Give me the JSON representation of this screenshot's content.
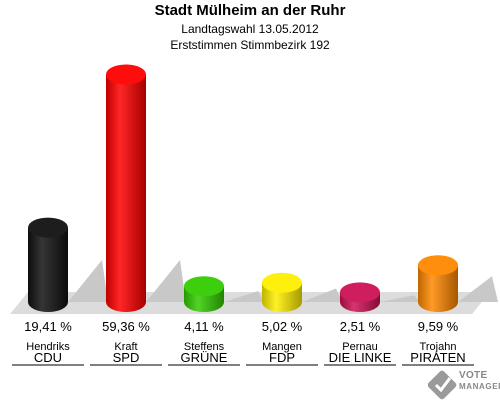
{
  "header": {
    "title": "Stadt Mülheim an der Ruhr",
    "subtitle1": "Landtagswahl 13.05.2012",
    "subtitle2": "Erststimmen Stimmbezirk 192"
  },
  "chart_data": {
    "type": "bar",
    "categories": [
      "CDU",
      "SPD",
      "GRÜNE",
      "FDP",
      "DIE LINKE",
      "PIRATEN"
    ],
    "candidates": [
      "Hendriks",
      "Kraft",
      "Steffens",
      "Mangen",
      "Pernau",
      "Trojahn"
    ],
    "values": [
      19.41,
      59.36,
      4.11,
      5.02,
      2.51,
      9.59
    ],
    "value_labels": [
      "19,41 %",
      "59,36 %",
      "4,11 %",
      "5,02 %",
      "2,51 %",
      "9,59 %"
    ],
    "colors": [
      "#111111",
      "#ff0000",
      "#33cc00",
      "#ffee00",
      "#cc1155",
      "#ff8800"
    ],
    "ylim": [
      0,
      60
    ]
  },
  "logo": {
    "line1": "VOTE",
    "line2": "MANAGER",
    "icon": "check-ballot-icon"
  }
}
